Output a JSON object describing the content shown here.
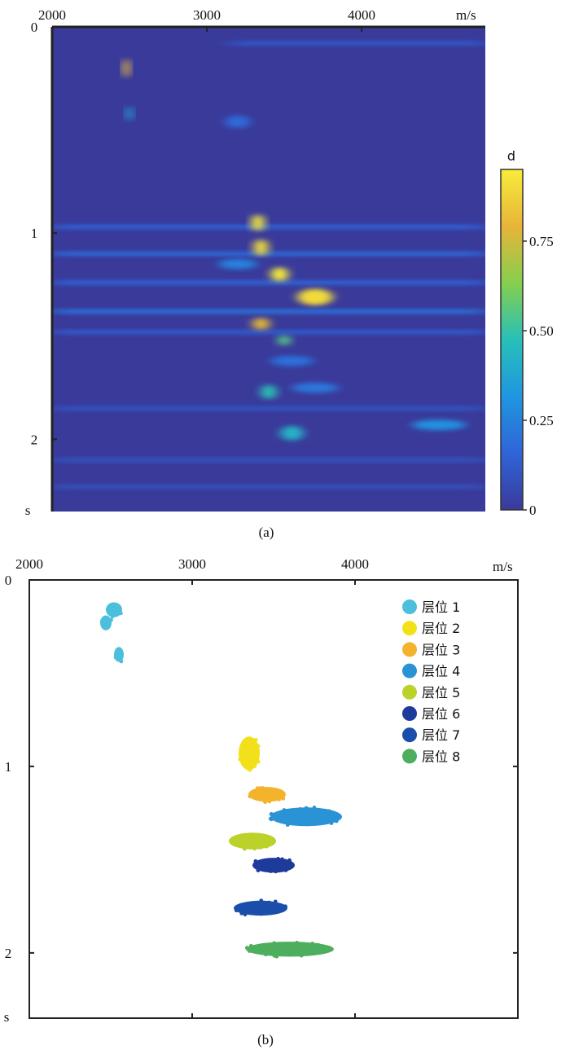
{
  "chart_data": [
    {
      "type": "heatmap",
      "caption": "(a)",
      "x_unit": "m/s",
      "y_unit": "s",
      "xlim": [
        2000,
        4800
      ],
      "ylim": [
        0,
        2.35
      ],
      "x_ticks": [
        {
          "value": 2000,
          "label": "2000"
        },
        {
          "value": 3000,
          "label": "3000"
        },
        {
          "value": 4000,
          "label": "4000"
        }
      ],
      "y_ticks": [
        {
          "value": 0,
          "label": "0"
        },
        {
          "value": 1,
          "label": "1"
        },
        {
          "value": 2,
          "label": "2"
        }
      ],
      "colorbar": {
        "label": "d",
        "range": [
          0,
          0.95
        ],
        "ticks": [
          {
            "value": 0,
            "label": "0"
          },
          {
            "value": 0.25,
            "label": "0.25"
          },
          {
            "value": 0.5,
            "label": "0.50"
          },
          {
            "value": 0.75,
            "label": "0.75"
          }
        ],
        "colors": [
          "#3a3a9a",
          "#2f64d8",
          "#2096e0",
          "#27c0b8",
          "#86cf4e",
          "#e8b43a",
          "#f7ec3a"
        ]
      },
      "background_value": 0.05,
      "hotspots": [
        {
          "x": 2480,
          "y": 0.2,
          "width": 25,
          "height": 0.09,
          "value": 0.82
        },
        {
          "x": 2500,
          "y": 0.42,
          "width": 20,
          "height": 0.07,
          "value": 0.35
        },
        {
          "x": 3200,
          "y": 0.46,
          "width": 160,
          "height": 0.06,
          "value": 0.18
        },
        {
          "x": 3330,
          "y": 0.95,
          "width": 80,
          "height": 0.08,
          "value": 0.95
        },
        {
          "x": 3350,
          "y": 1.07,
          "width": 90,
          "height": 0.08,
          "value": 0.92
        },
        {
          "x": 3470,
          "y": 1.2,
          "width": 110,
          "height": 0.07,
          "value": 0.95
        },
        {
          "x": 3700,
          "y": 1.31,
          "width": 230,
          "height": 0.08,
          "value": 0.9
        },
        {
          "x": 3350,
          "y": 1.44,
          "width": 110,
          "height": 0.06,
          "value": 0.78
        },
        {
          "x": 3500,
          "y": 1.52,
          "width": 80,
          "height": 0.05,
          "value": 0.55
        },
        {
          "x": 3400,
          "y": 1.77,
          "width": 100,
          "height": 0.07,
          "value": 0.48
        },
        {
          "x": 3550,
          "y": 1.97,
          "width": 150,
          "height": 0.07,
          "value": 0.42
        },
        {
          "x": 4500,
          "y": 1.93,
          "width": 350,
          "height": 0.05,
          "value": 0.3
        },
        {
          "x": 3700,
          "y": 1.75,
          "width": 300,
          "height": 0.05,
          "value": 0.22
        },
        {
          "x": 3550,
          "y": 1.62,
          "width": 280,
          "height": 0.05,
          "value": 0.2
        },
        {
          "x": 3200,
          "y": 1.15,
          "width": 250,
          "height": 0.05,
          "value": 0.25
        }
      ],
      "bands": [
        {
          "y": 0.08,
          "x0": 3150,
          "x1": 4800,
          "value": 0.12
        },
        {
          "y": 0.97,
          "x0": 2000,
          "x1": 4800,
          "value": 0.15
        },
        {
          "y": 1.1,
          "x0": 2000,
          "x1": 4800,
          "value": 0.18
        },
        {
          "y": 1.24,
          "x0": 2000,
          "x1": 4800,
          "value": 0.16
        },
        {
          "y": 1.38,
          "x0": 2000,
          "x1": 4800,
          "value": 0.2
        },
        {
          "y": 1.48,
          "x0": 2000,
          "x1": 4800,
          "value": 0.13
        },
        {
          "y": 1.85,
          "x0": 2000,
          "x1": 4800,
          "value": 0.1
        },
        {
          "y": 2.1,
          "x0": 2000,
          "x1": 4800,
          "value": 0.1
        },
        {
          "y": 2.23,
          "x0": 2000,
          "x1": 4800,
          "value": 0.09
        }
      ]
    },
    {
      "type": "scatter",
      "caption": "(b)",
      "x_unit": "m/s",
      "y_unit": "s",
      "xlim": [
        2000,
        5000
      ],
      "ylim": [
        0,
        2.35
      ],
      "x_ticks": [
        {
          "value": 2000,
          "label": "2000"
        },
        {
          "value": 3000,
          "label": "3000"
        },
        {
          "value": 4000,
          "label": "4000"
        }
      ],
      "y_ticks": [
        {
          "value": 0,
          "label": "0"
        },
        {
          "value": 1,
          "label": "1"
        },
        {
          "value": 2,
          "label": "2"
        }
      ],
      "series": [
        {
          "name": "层位 1",
          "color": "#4bbfdc",
          "clusters": [
            {
              "x": 2520,
              "y": 0.16,
              "width": 100,
              "height": 0.08
            },
            {
              "x": 2470,
              "y": 0.23,
              "width": 70,
              "height": 0.08
            },
            {
              "x": 2550,
              "y": 0.4,
              "width": 60,
              "height": 0.08
            }
          ]
        },
        {
          "name": "层位 2",
          "color": "#f2e11a",
          "clusters": [
            {
              "x": 3350,
              "y": 0.93,
              "width": 130,
              "height": 0.18
            }
          ]
        },
        {
          "name": "层位 3",
          "color": "#f4b32c",
          "clusters": [
            {
              "x": 3460,
              "y": 1.15,
              "width": 230,
              "height": 0.08
            }
          ]
        },
        {
          "name": "层位 4",
          "color": "#2a93d5",
          "clusters": [
            {
              "x": 3700,
              "y": 1.27,
              "width": 440,
              "height": 0.1
            }
          ]
        },
        {
          "name": "层位 5",
          "color": "#bcd12a",
          "clusters": [
            {
              "x": 3370,
              "y": 1.4,
              "width": 290,
              "height": 0.09
            }
          ]
        },
        {
          "name": "层位 6",
          "color": "#1e3a9a",
          "clusters": [
            {
              "x": 3500,
              "y": 1.53,
              "width": 260,
              "height": 0.08
            }
          ]
        },
        {
          "name": "层位 7",
          "color": "#1b4eaa",
          "clusters": [
            {
              "x": 3420,
              "y": 1.76,
              "width": 330,
              "height": 0.08
            }
          ]
        },
        {
          "name": "层位 8",
          "color": "#4dae5e",
          "clusters": [
            {
              "x": 3600,
              "y": 1.98,
              "width": 540,
              "height": 0.08
            }
          ]
        }
      ]
    }
  ]
}
